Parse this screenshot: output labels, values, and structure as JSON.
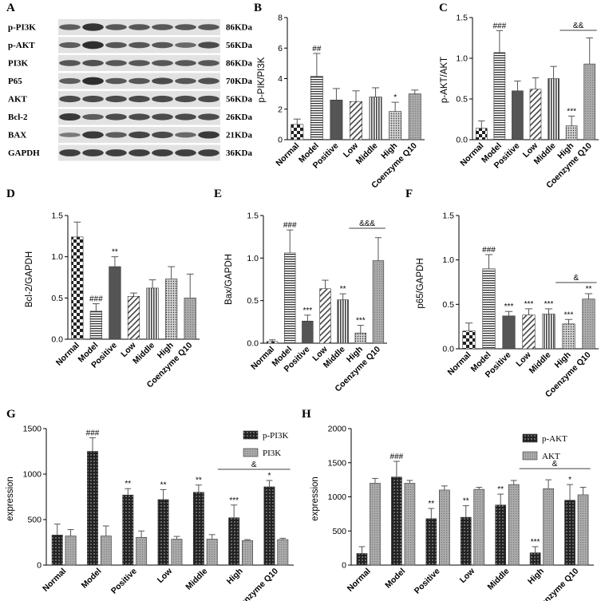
{
  "panel_letters": {
    "A": "A",
    "B": "B",
    "C": "C",
    "D": "D",
    "E": "E",
    "F": "F",
    "G": "G",
    "H": "H"
  },
  "colors": {
    "dark": "#5a5a5a",
    "light": "#a8a8a8",
    "blot_bg": "#e2e2e2",
    "band": "#1e1e1e"
  },
  "blot": {
    "rows": [
      {
        "label": "p-PI3K",
        "size": "86KDa",
        "intensity": [
          0.55,
          0.9,
          0.6,
          0.6,
          0.6,
          0.6,
          0.6
        ]
      },
      {
        "label": "p-AKT",
        "size": "56KDa",
        "intensity": [
          0.55,
          0.95,
          0.6,
          0.6,
          0.6,
          0.45,
          0.7
        ]
      },
      {
        "label": "PI3K",
        "size": "86KDa",
        "intensity": [
          0.6,
          0.65,
          0.6,
          0.6,
          0.6,
          0.6,
          0.6
        ]
      },
      {
        "label": "P65",
        "size": "70KDa",
        "intensity": [
          0.55,
          0.95,
          0.6,
          0.6,
          0.7,
          0.6,
          0.65
        ]
      },
      {
        "label": "AKT",
        "size": "56KDa",
        "intensity": [
          0.7,
          0.7,
          0.7,
          0.7,
          0.7,
          0.7,
          0.7
        ]
      },
      {
        "label": "Bcl-2",
        "size": "26KDa",
        "intensity": [
          0.85,
          0.55,
          0.7,
          0.7,
          0.7,
          0.7,
          0.7
        ]
      },
      {
        "label": "BAX",
        "size": "21KDa",
        "intensity": [
          0.3,
          0.85,
          0.55,
          0.75,
          0.7,
          0.45,
          0.85
        ]
      },
      {
        "label": "GAPDH",
        "size": "36KDa",
        "intensity": [
          0.8,
          0.8,
          0.8,
          0.8,
          0.8,
          0.8,
          0.8
        ]
      }
    ]
  },
  "chart_data": [
    {
      "id": "B",
      "type": "bar",
      "ylabel": "p-PIK/PI3K",
      "ylim": [
        0,
        8
      ],
      "yticks": [
        0,
        2,
        4,
        6,
        8
      ],
      "categories": [
        "Normal",
        "Model",
        "Positive",
        "Low",
        "Middle",
        "High",
        "Coenzyme Q10"
      ],
      "values": [
        1.0,
        4.15,
        2.6,
        2.5,
        2.8,
        1.85,
        3.0
      ],
      "errors": [
        0.35,
        1.5,
        0.75,
        0.7,
        0.6,
        0.6,
        0.25
      ],
      "annotations": [
        "",
        "##",
        "",
        "",
        "",
        "*",
        ""
      ],
      "bracket": null
    },
    {
      "id": "C",
      "type": "bar",
      "ylabel": "p-AKT/AKT",
      "ylim": [
        0,
        1.5
      ],
      "yticks": [
        0.0,
        0.5,
        1.0,
        1.5
      ],
      "categories": [
        "Normal",
        "Model",
        "Positive",
        "Low",
        "Middle",
        "High",
        "Coenzyme Q10"
      ],
      "values": [
        0.14,
        1.07,
        0.6,
        0.62,
        0.75,
        0.17,
        0.93
      ],
      "errors": [
        0.09,
        0.27,
        0.12,
        0.14,
        0.15,
        0.12,
        0.32
      ],
      "annotations": [
        "",
        "###",
        "",
        "",
        "",
        "***",
        ""
      ],
      "bracket": {
        "label": "&&",
        "from": 5,
        "to": 6
      }
    },
    {
      "id": "D",
      "type": "bar",
      "ylabel": "Bcl-2/GAPDH",
      "ylim": [
        0,
        1.5
      ],
      "yticks": [
        0.0,
        0.5,
        1.0,
        1.5
      ],
      "categories": [
        "Normal",
        "Model",
        "Positive",
        "Low",
        "Middle",
        "High",
        "Coenzyme Q10"
      ],
      "values": [
        1.24,
        0.34,
        0.88,
        0.52,
        0.62,
        0.73,
        0.5
      ],
      "errors": [
        0.18,
        0.09,
        0.12,
        0.04,
        0.1,
        0.15,
        0.29
      ],
      "annotations": [
        "",
        "###",
        "**",
        "",
        "",
        "",
        ""
      ],
      "bracket": null
    },
    {
      "id": "E",
      "type": "bar",
      "ylabel": "Bax/GAPDH",
      "ylim": [
        0,
        1.5
      ],
      "yticks": [
        0.0,
        0.5,
        1.0,
        1.5
      ],
      "categories": [
        "Normal",
        "Model",
        "Positive",
        "Low",
        "Middle",
        "High",
        "Coenzyme Q10"
      ],
      "values": [
        0.02,
        1.06,
        0.26,
        0.64,
        0.51,
        0.12,
        0.97
      ],
      "errors": [
        0.02,
        0.27,
        0.07,
        0.1,
        0.07,
        0.09,
        0.27
      ],
      "annotations": [
        "",
        "###",
        "***",
        "",
        "**",
        "***",
        ""
      ],
      "bracket": {
        "label": "&&&",
        "from": 5,
        "to": 6
      }
    },
    {
      "id": "F",
      "type": "bar",
      "ylabel": "p65/GAPDH",
      "ylim": [
        0,
        1.5
      ],
      "yticks": [
        0.0,
        0.5,
        1.0,
        1.5
      ],
      "categories": [
        "Normal",
        "Model",
        "Positive",
        "Low",
        "Middle",
        "High",
        "Coenzyme Q10"
      ],
      "values": [
        0.2,
        0.9,
        0.37,
        0.38,
        0.39,
        0.28,
        0.56
      ],
      "errors": [
        0.09,
        0.16,
        0.05,
        0.07,
        0.06,
        0.05,
        0.06
      ],
      "annotations": [
        "",
        "###",
        "***",
        "***",
        "***",
        "***",
        "**"
      ],
      "bracket": {
        "label": "&",
        "from": 5,
        "to": 6
      }
    },
    {
      "id": "G",
      "type": "grouped-bar",
      "ylabel": "expression",
      "ylim": [
        0,
        1500
      ],
      "yticks": [
        0,
        500,
        1000,
        1500
      ],
      "categories": [
        "Normal",
        "Model",
        "Positive",
        "Low",
        "Middle",
        "High",
        "Coenzyme Q10"
      ],
      "series": [
        {
          "name": "p-PI3K",
          "values": [
            330,
            1250,
            770,
            720,
            800,
            520,
            860
          ],
          "errors": [
            120,
            150,
            70,
            110,
            80,
            140,
            70
          ],
          "annotations": [
            "",
            "###",
            "**",
            "**",
            "**",
            "***",
            "*"
          ]
        },
        {
          "name": "PI3K",
          "values": [
            320,
            320,
            305,
            285,
            285,
            270,
            280
          ],
          "errors": [
            70,
            110,
            70,
            30,
            50,
            10,
            15
          ],
          "annotations": [
            "",
            "",
            "",
            "",
            "",
            "",
            ""
          ]
        }
      ],
      "bracket": {
        "label": "&",
        "from": 5,
        "to": 6
      }
    },
    {
      "id": "H",
      "type": "grouped-bar",
      "ylabel": "expression",
      "ylim": [
        0,
        2000
      ],
      "yticks": [
        0,
        500,
        1000,
        1500,
        2000
      ],
      "categories": [
        "Normal",
        "Model",
        "Positive",
        "Low",
        "Middle",
        "High",
        "Coenzyme Q10"
      ],
      "series": [
        {
          "name": "p-AKT",
          "values": [
            170,
            1290,
            680,
            700,
            880,
            180,
            950
          ],
          "errors": [
            100,
            230,
            150,
            170,
            160,
            90,
            230
          ],
          "annotations": [
            "",
            "###",
            "**",
            "**",
            "**",
            "***",
            "*"
          ]
        },
        {
          "name": "AKT",
          "values": [
            1200,
            1200,
            1100,
            1110,
            1180,
            1120,
            1030
          ],
          "errors": [
            70,
            40,
            60,
            30,
            60,
            130,
            110
          ],
          "annotations": [
            "",
            "",
            "",
            "",
            "",
            "",
            ""
          ]
        }
      ],
      "bracket": {
        "label": "&",
        "from": 5,
        "to": 6
      }
    }
  ]
}
